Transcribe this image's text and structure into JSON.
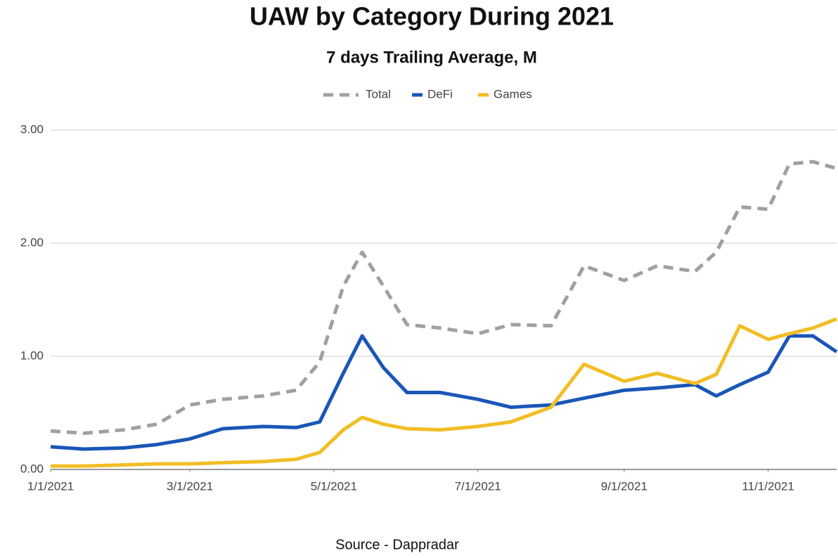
{
  "chart_data": {
    "type": "line",
    "title": "UAW by Category During 2021",
    "subtitle": "7 days Trailing Average, M",
    "source": "Source - Dappradar",
    "x": [
      "2021-01-01",
      "2021-01-15",
      "2021-02-01",
      "2021-02-15",
      "2021-03-01",
      "2021-03-15",
      "2021-04-01",
      "2021-04-15",
      "2021-04-25",
      "2021-05-05",
      "2021-05-13",
      "2021-05-22",
      "2021-06-01",
      "2021-06-15",
      "2021-07-01",
      "2021-07-15",
      "2021-08-01",
      "2021-08-15",
      "2021-09-01",
      "2021-09-15",
      "2021-10-01",
      "2021-10-10",
      "2021-10-20",
      "2021-11-01",
      "2021-11-10",
      "2021-11-20",
      "2021-11-30"
    ],
    "series": [
      {
        "name": "Total",
        "color": "#a0a0a0",
        "dashed": true,
        "values": [
          0.34,
          0.32,
          0.35,
          0.4,
          0.57,
          0.62,
          0.65,
          0.7,
          0.95,
          1.62,
          1.92,
          1.62,
          1.28,
          1.25,
          1.2,
          1.28,
          1.27,
          1.8,
          1.67,
          1.8,
          1.75,
          1.92,
          2.32,
          2.3,
          2.7,
          2.72,
          2.66
        ]
      },
      {
        "name": "DeFi",
        "color": "#1a56b8",
        "values": [
          0.2,
          0.18,
          0.19,
          0.22,
          0.27,
          0.36,
          0.38,
          0.37,
          0.42,
          0.85,
          1.18,
          0.9,
          0.68,
          0.68,
          0.62,
          0.55,
          0.57,
          0.63,
          0.7,
          0.72,
          0.75,
          0.65,
          0.75,
          0.86,
          1.18,
          1.18,
          1.04
        ]
      },
      {
        "name": "Games",
        "color": "#f2bd25",
        "values": [
          0.03,
          0.03,
          0.04,
          0.05,
          0.05,
          0.06,
          0.07,
          0.09,
          0.15,
          0.35,
          0.46,
          0.4,
          0.36,
          0.35,
          0.38,
          0.42,
          0.55,
          0.93,
          0.78,
          0.85,
          0.76,
          0.84,
          1.27,
          1.15,
          1.2,
          1.25,
          1.33
        ]
      }
    ],
    "xlim": [
      "2021-01-01",
      "2021-11-30"
    ],
    "xticks": [
      {
        "value": "2021-01-01",
        "label": "1/1/2021"
      },
      {
        "value": "2021-03-01",
        "label": "3/1/2021"
      },
      {
        "value": "2021-05-01",
        "label": "5/1/2021"
      },
      {
        "value": "2021-07-01",
        "label": "7/1/2021"
      },
      {
        "value": "2021-09-01",
        "label": "9/1/2021"
      },
      {
        "value": "2021-11-01",
        "label": "11/1/2021"
      }
    ],
    "ylim": [
      0,
      3
    ],
    "yticks": [
      {
        "value": 0,
        "label": "0.00"
      },
      {
        "value": 1,
        "label": "1.00"
      },
      {
        "value": 2,
        "label": "2.00"
      },
      {
        "value": 3,
        "label": "3.00"
      }
    ],
    "grid": true,
    "legend": "top"
  }
}
